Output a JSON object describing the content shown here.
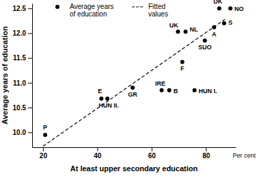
{
  "chart_data": {
    "type": "scatter",
    "xlabel": "At least upper secondary education",
    "ylabel": "Average years of education",
    "x_unit_label": "Per cent",
    "xlim": [
      16,
      91
    ],
    "xticks": [
      20,
      40,
      60,
      80
    ],
    "ylim": [
      9.7,
      12.6
    ],
    "yticks": [
      {
        "value": 10,
        "label": "10.0"
      },
      10.5,
      {
        "value": 11,
        "label": "11.0"
      },
      11.5,
      {
        "value": 12,
        "label": "12.0"
      },
      12.5
    ],
    "grid": false,
    "legend": "top",
    "series": [
      {
        "name": "Average years of education",
        "type": "scatter",
        "marker": "circle",
        "color": "#000000",
        "labels": [
          "P",
          "E",
          "HUN II.",
          "GR",
          "IRE",
          "B",
          "HUN I.",
          "F",
          "UK",
          "NL",
          "SUO",
          "A",
          "S",
          "DK",
          "NO"
        ],
        "x": [
          20.8,
          41.5,
          43.7,
          53,
          63.7,
          66.5,
          75.8,
          71.3,
          69.7,
          72.5,
          79.6,
          83,
          86.7,
          84.9,
          89
        ],
        "values": [
          9.95,
          10.68,
          10.68,
          10.9,
          10.85,
          10.85,
          10.85,
          11.42,
          12.03,
          12.03,
          11.85,
          12.12,
          12.2,
          12.5,
          12.5
        ]
      },
      {
        "name": "Fitted values",
        "type": "line",
        "line_style": "dashed",
        "color": "#000000",
        "x": [
          20,
          87
        ],
        "values": [
          9.72,
          12.28
        ]
      }
    ]
  }
}
